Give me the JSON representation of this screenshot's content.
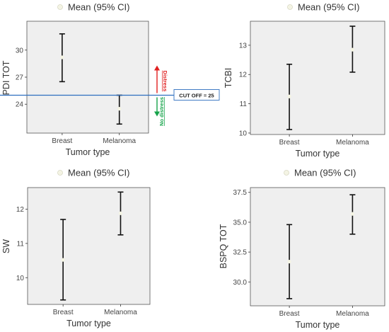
{
  "colors": {
    "panel_bg": "#efefef",
    "panel_border": "#555555",
    "errorbar": "#111111",
    "mean_point": "#f4f4e4",
    "cutoff_line": "#2f6fbf",
    "distress_arrow": "#e02020",
    "no_distress_arrow": "#16a34a"
  },
  "chart_data": [
    {
      "type": "errorbar",
      "legend": "Mean (95% CI)",
      "xlabel": "Tumor type",
      "ylabel": "PDI TOT",
      "categories": [
        "Breast",
        "Melanoma"
      ],
      "mean": [
        29.2,
        23.5
      ],
      "ci_low": [
        26.5,
        21.8
      ],
      "ci_high": [
        31.8,
        25.0
      ],
      "ylim": [
        20.8,
        33.2
      ],
      "yticks": [
        24,
        27,
        30
      ],
      "annotations": {
        "cutoff_value": 25,
        "cutoff_label": "CUT OFF = 25",
        "distress_label": "Distress",
        "no_distress_label": "No distress"
      }
    },
    {
      "type": "errorbar",
      "legend": "Mean (95% CI)",
      "xlabel": "Tumor type",
      "ylabel": "TCBI",
      "categories": [
        "Breast",
        "Melanoma"
      ],
      "mean": [
        11.25,
        12.85
      ],
      "ci_low": [
        10.12,
        12.08
      ],
      "ci_high": [
        12.35,
        13.65
      ],
      "ylim": [
        9.95,
        13.82
      ],
      "yticks": [
        10,
        11,
        12,
        13
      ]
    },
    {
      "type": "errorbar",
      "legend": "Mean (95% CI)",
      "xlabel": "Tumor type",
      "ylabel": "SW",
      "categories": [
        "Breast",
        "Melanoma"
      ],
      "mean": [
        10.52,
        11.88
      ],
      "ci_low": [
        9.35,
        11.25
      ],
      "ci_high": [
        11.7,
        12.5
      ],
      "ylim": [
        9.22,
        12.63
      ],
      "yticks": [
        10,
        11,
        12
      ]
    },
    {
      "type": "errorbar",
      "legend": "Mean (95% CI)",
      "xlabel": "Tumor type",
      "ylabel": "BSPQ TOT",
      "categories": [
        "Breast",
        "Melanoma"
      ],
      "mean": [
        31.7,
        35.7
      ],
      "ci_low": [
        28.6,
        34.0
      ],
      "ci_high": [
        34.8,
        37.3
      ],
      "ylim": [
        28.0,
        37.9
      ],
      "yticks": [
        30.0,
        32.5,
        35.0,
        37.5
      ]
    }
  ]
}
